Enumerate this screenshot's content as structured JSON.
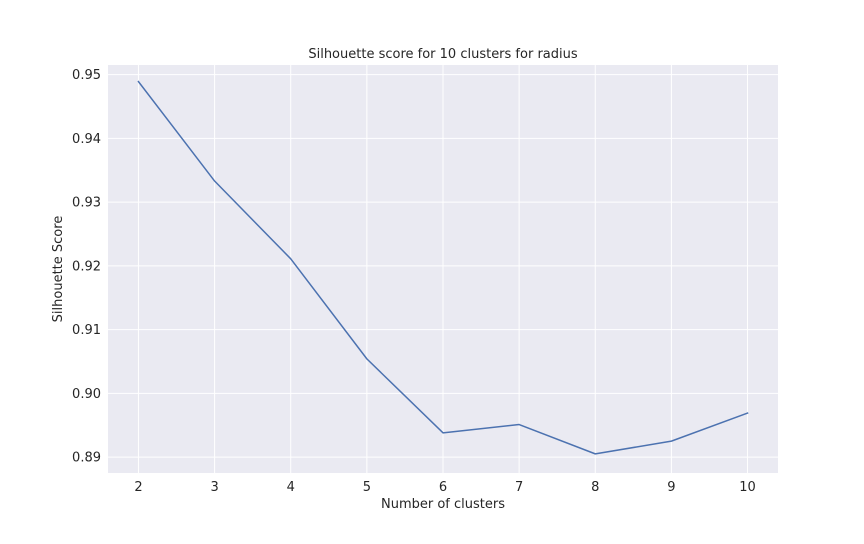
{
  "chart_data": {
    "type": "line",
    "title": "Silhouette score for 10 clusters for radius",
    "xlabel": "Number of clusters",
    "ylabel": "Silhouette Score",
    "x": [
      2,
      3,
      4,
      5,
      6,
      7,
      8,
      9,
      10
    ],
    "series": [
      {
        "values": [
          0.9489,
          0.9333,
          0.9211,
          0.9054,
          0.8938,
          0.8951,
          0.8905,
          0.8925,
          0.8969
        ]
      }
    ],
    "xlim": [
      1.6,
      10.4
    ],
    "ylim": [
      0.8875,
      0.9515
    ],
    "xticks": [
      "2",
      "3",
      "4",
      "5",
      "6",
      "7",
      "8",
      "9",
      "10"
    ],
    "yticks": [
      "0.89",
      "0.90",
      "0.91",
      "0.92",
      "0.93",
      "0.94",
      "0.95"
    ],
    "grid": true,
    "colors": {
      "line": "#4c72b0",
      "plot_background": "#eaeaf2",
      "grid": "#ffffff"
    }
  }
}
